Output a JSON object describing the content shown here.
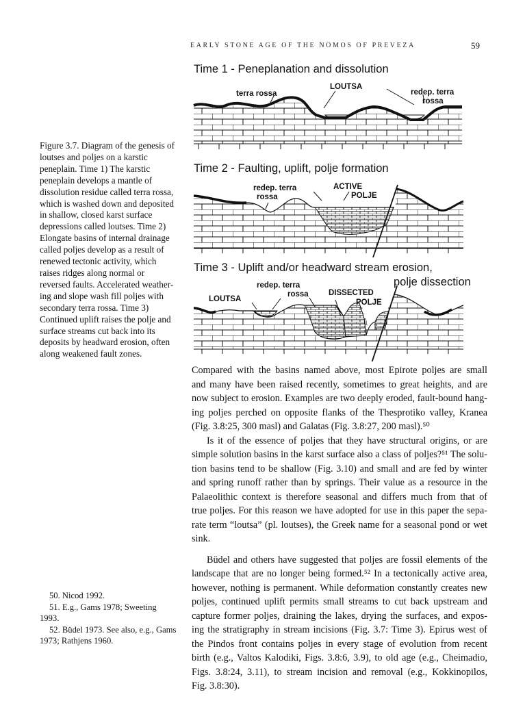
{
  "header": {
    "running_title": "EARLY STONE AGE OF THE NOMOS OF PREVEZA",
    "page_number": "59"
  },
  "figure": {
    "panels": [
      {
        "title": "Time 1 - Peneplanation and dissolution",
        "labels": [
          "terra rossa",
          "LOUTSA",
          "redep. terra",
          "rossa"
        ]
      },
      {
        "title": "Time 2 - Faulting, uplift, polje formation",
        "labels": [
          "redep. terra",
          "rossa",
          "ACTIVE",
          "POLJE"
        ]
      },
      {
        "title": "Time 3 - Uplift and/or headward stream erosion,",
        "title_line2": "polje dissection",
        "labels": [
          "LOUTSA",
          "redep. terra",
          "rossa",
          "DISSECTED",
          "POLJE"
        ]
      }
    ],
    "caption_lines": [
      "Figure 3.7. Diagram of the genesis of",
      "loutses and poljes on a karstic",
      "peneplain. Time 1) The karstic",
      "peneplain develops a mantle of",
      "dissolution residue called terra rossa,",
      "which is washed down and deposited",
      "in shallow, closed karst surface",
      "depressions called loutses. Time 2)",
      "Elongate basins of internal drainage",
      "called poljes develop as a result of",
      "renewed tectonic activity, which",
      "raises ridges along normal or",
      "reversed faults. Accelerated weather-",
      "ing and slope wash fill poljes with",
      "secondary terra rossa. Time 3)",
      "Continued uplift raises the polje and",
      "surface streams cut back into its",
      "deposits by headward erosion, often",
      "along weakened fault zones."
    ]
  },
  "body": {
    "paragraphs": [
      [
        "Compared with the basins named above, most Epirote poljes are small",
        "and many have been raised recently, sometimes to great heights, and are",
        "now subject to erosion. Examples are two deeply eroded, fault-bound hang-",
        "ing poljes perched on opposite flanks of the Thesprotiko valley, Kranea",
        "(Fig. 3.8:25, 300 masl) and Galatas (Fig. 3.8:27, 200 masl).⁵⁰"
      ],
      [
        "Is it of the essence of poljes that they have structural origins, or are",
        "simple solution basins in the karst surface also a class of poljes?⁵¹ The solu-",
        "tion basins tend to be shallow (Fig. 3.10) and small and are fed by winter",
        "and spring runoff rather than by springs. Their value as a resource in the",
        "Palaeolithic context is therefore seasonal and differs much from that of",
        "true poljes. For this reason we have adopted for use in this paper the sepa-",
        "rate term “loutsa” (pl. loutses), the Greek name for a seasonal pond or wet",
        "sink."
      ],
      [
        "Büdel and others have suggested that poljes are fossil elements of the",
        "landscape that are no longer being formed.⁵² In a tectonically active area,",
        "however, nothing is permanent. While deformation constantly creates new",
        "poljes, continued uplift permits small streams to cut back upstream and",
        "capture former poljes, draining the lakes, drying the surfaces, and expos-",
        "ing the stratigraphy in stream incisions (Fig. 3.7: Time 3). Epirus west of",
        "the Pindos front contains poljes in every stage of evolution from recent",
        "birth (e.g., Valtos Kalodiki, Figs. 3.8:6, 3.9), to old age (e.g., Cheimadio,",
        "Figs. 3.8:24, 3.11), to stream incision and removal (e.g., Kokkinopilos,",
        "Fig. 3.8:30)."
      ]
    ]
  },
  "footnotes": {
    "lines": [
      "50. Nicod 1992.",
      "51. E.g., Gams 1978; Sweeting",
      "1993.",
      "52. Büdel 1973. See also, e.g., Gams",
      "1973; Rathjens 1960."
    ]
  }
}
